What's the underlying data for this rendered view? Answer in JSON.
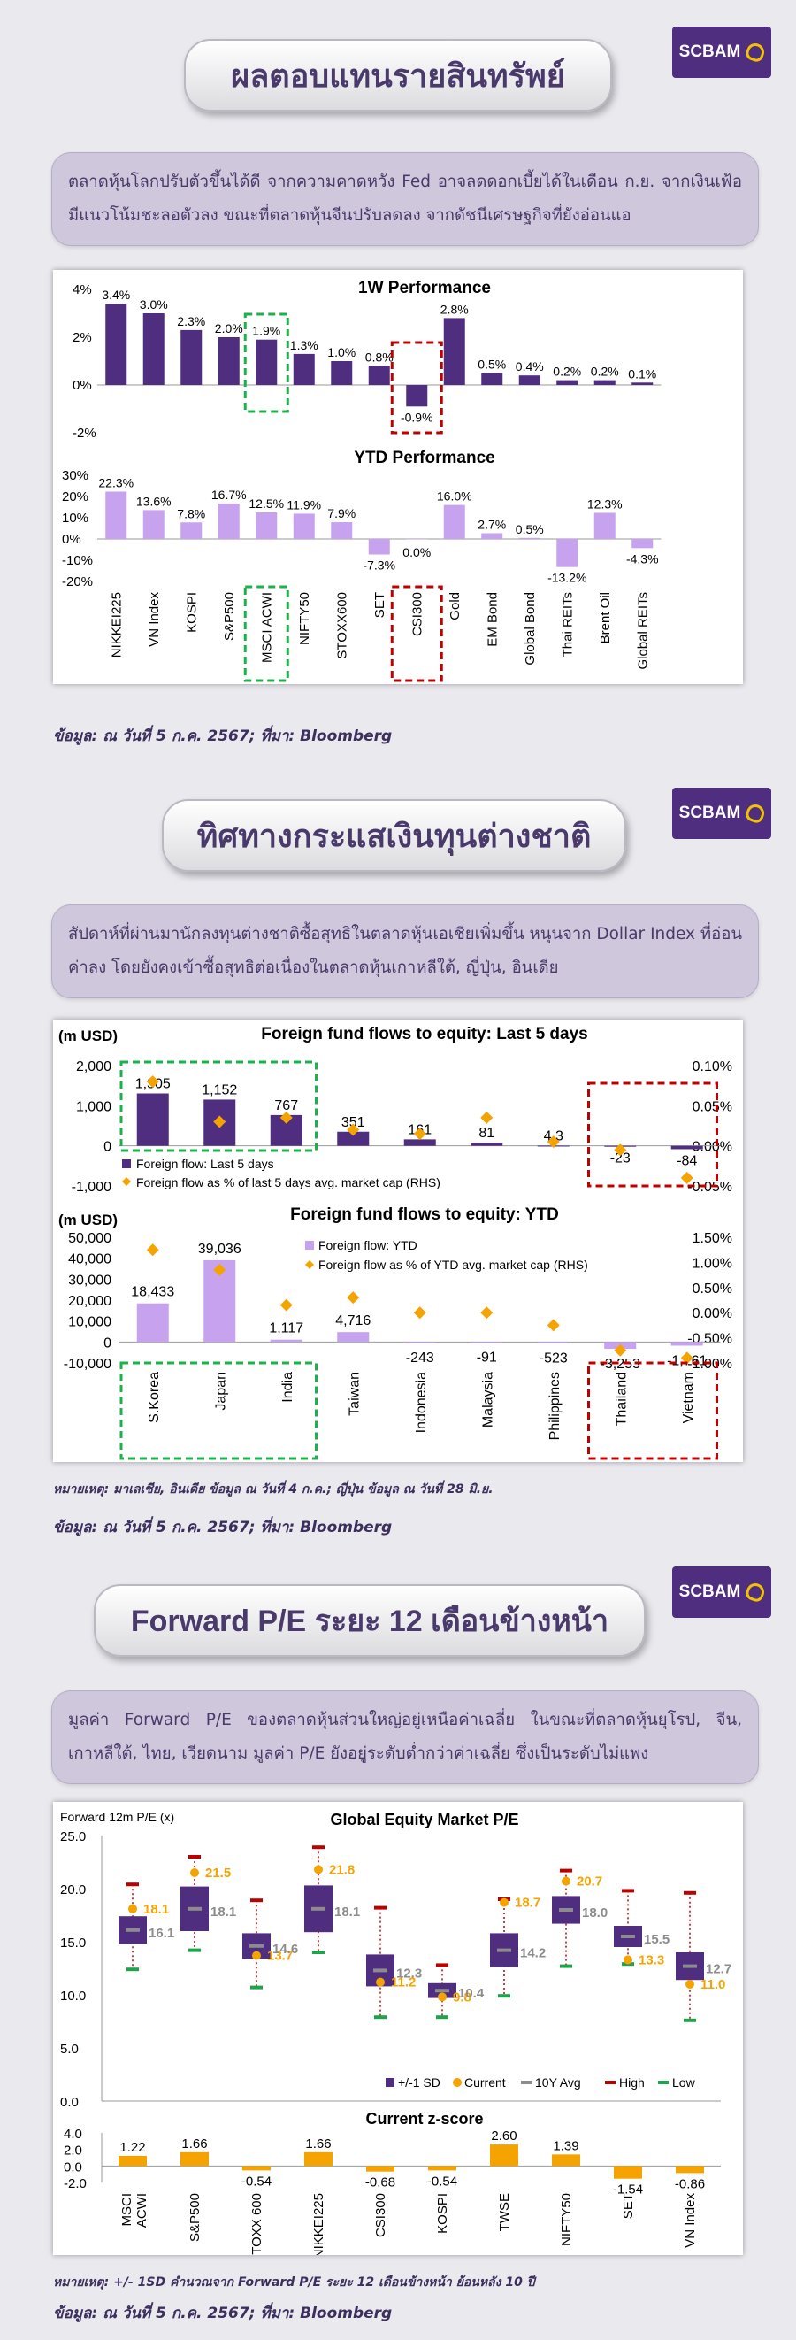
{
  "brand": "SCBAM",
  "sections": [
    {
      "title": "ผลตอบแทนรายสินทรัพย์",
      "description": "ตลาดหุ้นโลกปรับตัวขึ้นได้ดี จากความคาดหวัง Fed อาจลดดอกเบี้ยได้ในเดือน ก.ย. จากเงินเฟ้อมีแนวโน้มชะลอตัวลง ขณะที่ตลาดหุ้นจีนปรับลดลง จากดัชนีเศรษฐกิจที่ยังอ่อนแอ",
      "source": "ข้อมูล: ณ วันที่ 5 ก.ค. 2567; ที่มา: Bloomberg"
    },
    {
      "title": "ทิศทางกระแสเงินทุนต่างชาติ",
      "description": "สัปดาห์ที่ผ่านมานักลงทุนต่างชาติซื้อสุทธิในตลาดหุ้นเอเชียเพิ่มขึ้น หนุนจาก Dollar Index ที่อ่อนค่าลง โดยยังคงเข้าซื้อสุทธิต่อเนื่องในตลาดหุ้นเกาหลีใต้, ญี่ปุ่น, อินเดีย",
      "note": "หมายเหตุ: มาเลเซีย, อินเดีย ข้อมูล ณ วันที่ 4 ก.ค.; ญี่ปุ่น ข้อมูล ณ วันที่ 28 มิ.ย.",
      "source": "ข้อมูล: ณ วันที่ 5 ก.ค. 2567; ที่มา: Bloomberg"
    },
    {
      "title": "Forward P/E ระยะ 12 เดือนข้างหน้า",
      "description": "มูลค่า Forward P/E ของตลาดหุ้นส่วนใหญ่อยู่เหนือค่าเฉลี่ย ในขณะที่ตลาดหุ้นยุโรป, จีน, เกาหลีใต้, ไทย, เวียดนาม มูลค่า P/E ยังอยู่ระดับต่ำกว่าค่าเฉลี่ย ซึ่งเป็นระดับไม่แพง",
      "note": "หมายเหตุ: +/- 1SD คำนวณจาก Forward P/E ระยะ 12 เดือนข้างหน้า ย้อนหลัง 10 ปี",
      "source": "ข้อมูล: ณ วันที่ 5 ก.ค. 2567; ที่มา: Bloomberg"
    }
  ],
  "colors": {
    "dark_purple": "#4f2d7f",
    "light_purple": "#c7a2ee",
    "orange": "#f5a300",
    "gray": "#8c8c8c",
    "red": "#c00000",
    "green": "#1aa64a",
    "highlight_green": "#19b34a",
    "highlight_red": "#c00000"
  },
  "chart_data": [
    {
      "type": "bar",
      "title": "1W Performance",
      "categories": [
        "NIKKEI225",
        "VN Index",
        "KOSPI",
        "S&P500",
        "MSCI ACWI",
        "NIFTY50",
        "STOXX600",
        "SET",
        "CSI300",
        "Gold",
        "EM Bond",
        "Global Bond",
        "Thai REITs",
        "Brent Oil",
        "Global REITs"
      ],
      "values": [
        3.4,
        3.0,
        2.3,
        2.0,
        1.9,
        1.3,
        1.0,
        0.8,
        -0.9,
        2.8,
        0.5,
        0.4,
        0.2,
        0.2,
        0.1
      ],
      "labels": [
        "3.4%",
        "3.0%",
        "2.3%",
        "2.0%",
        "1.9%",
        "1.3%",
        "1.0%",
        "0.8%",
        "-0.9%",
        "2.8%",
        "0.5%",
        "0.4%",
        "0.2%",
        "0.2%",
        "0.1%"
      ],
      "ylim": [
        -2,
        4
      ],
      "yticks": [
        "4%",
        "2%",
        "0%",
        "-2%"
      ]
    },
    {
      "type": "bar",
      "title": "YTD Performance",
      "categories": [
        "NIKKEI225",
        "VN Index",
        "KOSPI",
        "S&P500",
        "MSCI ACWI",
        "NIFTY50",
        "STOXX600",
        "SET",
        "CSI300",
        "Gold",
        "EM Bond",
        "Global Bond",
        "Thai REITs",
        "Brent Oil",
        "Global REITs"
      ],
      "values": [
        22.3,
        13.6,
        7.8,
        16.7,
        12.5,
        11.9,
        7.9,
        -7.3,
        0.0,
        16.0,
        2.7,
        0.5,
        -13.2,
        12.3,
        -4.3
      ],
      "labels": [
        "22.3%",
        "13.6%",
        "7.8%",
        "16.7%",
        "12.5%",
        "11.9%",
        "7.9%",
        "-7.3%",
        "0.0%",
        "16.0%",
        "2.7%",
        "0.5%",
        "-13.2%",
        "12.3%",
        "-4.3%"
      ],
      "ylim": [
        -20,
        30
      ],
      "yticks": [
        "30%",
        "20%",
        "10%",
        "0%",
        "-10%",
        "-20%"
      ]
    },
    {
      "type": "bar",
      "title": "Foreign fund flows to equity: Last 5 days",
      "unit": "(m USD)",
      "categories": [
        "S.Korea",
        "Japan",
        "India",
        "Taiwan",
        "Indonesia",
        "Malaysia",
        "Philippines",
        "Thailand",
        "Vietnam"
      ],
      "series": [
        {
          "name": "Foreign flow: Last 5 days",
          "values": [
            1305,
            1152,
            767,
            351,
            161,
            81,
            4.3,
            -23,
            -84
          ],
          "labels": [
            "1,305",
            "1,152",
            "767",
            "351",
            "161",
            "81",
            "4.3",
            "-23",
            "-84"
          ]
        },
        {
          "name": "Foreign flow as % of last 5 days avg. market cap (RHS)",
          "values": [
            0.08,
            0.03,
            0.035,
            0.02,
            0.015,
            0.035,
            0.005,
            -0.005,
            -0.04
          ]
        }
      ],
      "yticks": [
        "2,000",
        "1,000",
        "0",
        "-1,000"
      ],
      "y2ticks": [
        "0.10%",
        "0.05%",
        "0.00%",
        "-0.05%"
      ]
    },
    {
      "type": "bar",
      "title": "Foreign fund flows to equity: YTD",
      "unit": "(m USD)",
      "categories": [
        "S.Korea",
        "Japan",
        "India",
        "Taiwan",
        "Indonesia",
        "Malaysia",
        "Philippines",
        "Thailand",
        "Vietnam"
      ],
      "series": [
        {
          "name": "Foreign flow: YTD",
          "values": [
            18433,
            39036,
            1117,
            4716,
            -243,
            -91,
            -523,
            -3253,
            -1761
          ],
          "labels": [
            "18,433",
            "39,036",
            "1,117",
            "4,716",
            "-243",
            "-91",
            "-523",
            "-3,253",
            "-1,761"
          ]
        },
        {
          "name": "Foreign flow as % of YTD avg. market cap (RHS)",
          "values": [
            1.25,
            0.85,
            0.15,
            0.3,
            0.0,
            0.0,
            -0.25,
            -0.75,
            -0.9
          ]
        }
      ],
      "yticks": [
        "50,000",
        "40,000",
        "30,000",
        "20,000",
        "10,000",
        "0",
        "-10,000"
      ],
      "y2ticks": [
        "1.50%",
        "1.00%",
        "0.50%",
        "0.00%",
        "-0.50%",
        "-1.00%"
      ]
    },
    {
      "type": "box",
      "title": "Global Equity Market P/E",
      "ylabel": "Forward 12m P/E (x)",
      "categories": [
        "MSCI ACWI",
        "S&P500",
        "STOXX 600",
        "NIKKEI225",
        "CSI300",
        "KOSPI",
        "TWSE",
        "NIFTY50",
        "SET",
        "VN Index"
      ],
      "current": [
        18.1,
        21.5,
        13.7,
        21.8,
        11.2,
        9.8,
        18.7,
        20.7,
        13.3,
        11.0
      ],
      "avg10y": [
        16.1,
        18.1,
        14.6,
        18.1,
        12.3,
        10.4,
        14.2,
        18.0,
        15.5,
        12.7
      ],
      "high": [
        20.4,
        23.0,
        18.9,
        23.9,
        18.2,
        12.8,
        19.0,
        21.7,
        19.8,
        19.6
      ],
      "low": [
        12.4,
        14.2,
        10.7,
        14.0,
        7.9,
        7.9,
        9.9,
        12.7,
        12.9,
        7.6
      ],
      "plus1sd": [
        17.4,
        20.2,
        15.8,
        20.3,
        13.8,
        11.1,
        15.8,
        19.3,
        16.5,
        14.0
      ],
      "minus1sd": [
        14.8,
        16.0,
        13.4,
        15.9,
        10.8,
        9.7,
        12.6,
        16.7,
        14.5,
        11.4
      ],
      "current_labels": [
        "18.1",
        "21.5",
        "13.7",
        "21.8",
        "11.2",
        "9.8",
        "18.7",
        "20.7",
        "13.3",
        "11.0"
      ],
      "avg_labels": [
        "16.1",
        "18.1",
        "14.6",
        "18.1",
        "12.3",
        "10.4",
        "14.2",
        "18.0",
        "15.5",
        "12.7"
      ],
      "legend": [
        "+/-1 SD",
        "Current",
        "10Y Avg",
        "High",
        "Low"
      ],
      "ylim": [
        0,
        25
      ],
      "yticks": [
        "25.0",
        "20.0",
        "15.0",
        "10.0",
        "5.0",
        "0.0"
      ]
    },
    {
      "type": "bar",
      "title": "Current z-score",
      "categories": [
        "MSCI ACWI",
        "S&P500",
        "STOXX 600",
        "NIKKEI225",
        "CSI300",
        "KOSPI",
        "TWSE",
        "NIFTY50",
        "SET",
        "VN Index"
      ],
      "values": [
        1.22,
        1.66,
        -0.54,
        1.66,
        -0.68,
        -0.54,
        2.6,
        1.39,
        -1.54,
        -0.86
      ],
      "labels": [
        "1.22",
        "1.66",
        "-0.54",
        "1.66",
        "-0.68",
        "-0.54",
        "2.60",
        "1.39",
        "-1.54",
        "-0.86"
      ],
      "ylim": [
        -2,
        4
      ],
      "yticks": [
        "4.0",
        "2.0",
        "0.0",
        "-2.0"
      ]
    }
  ]
}
